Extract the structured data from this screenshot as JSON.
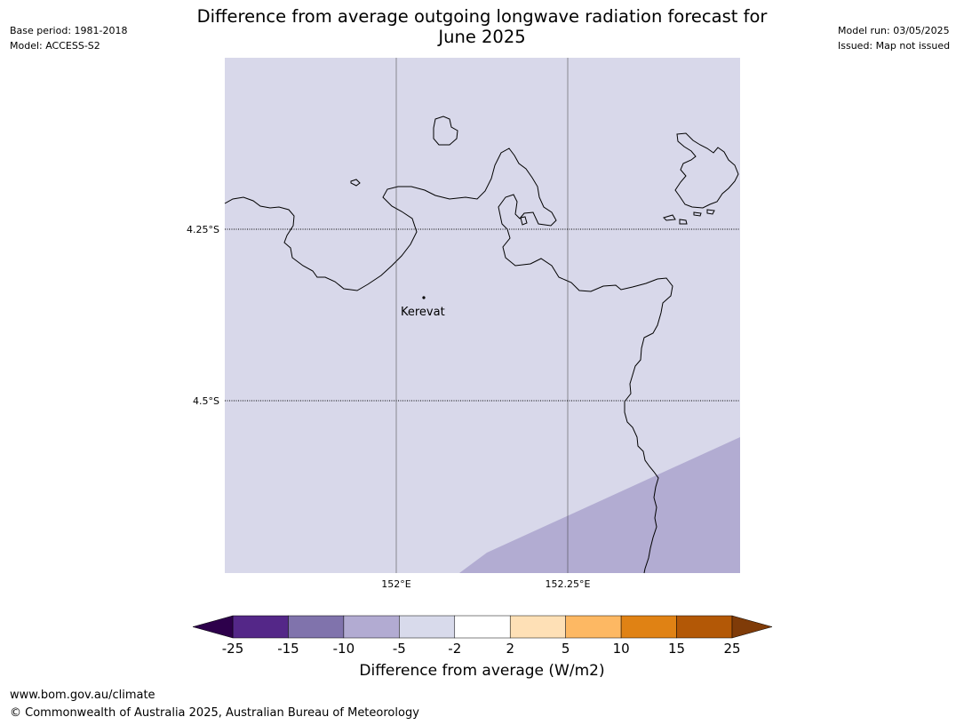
{
  "title_line1": "Difference from average outgoing longwave radiation forecast for",
  "title_line2": "June 2025",
  "meta_left": {
    "base_period": "Base period: 1981-2018",
    "model": "Model: ACCESS-S2"
  },
  "meta_right": {
    "model_run": "Model run: 03/05/2025",
    "issued": "Issued: Map not issued"
  },
  "map": {
    "lat_labels": [
      "4.25°S",
      "4.5°S"
    ],
    "lon_labels": [
      "152°E",
      "152.25°E"
    ],
    "place_label": "Kerevat",
    "background_class_color": "#d8d8ea",
    "anomaly_class_color": "#b2acd2",
    "coastline_color": "#000000"
  },
  "colorbar": {
    "label": "Difference from average (W/m2)",
    "ticks": [
      "-25",
      "-15",
      "-10",
      "-5",
      "-2",
      "2",
      "5",
      "10",
      "15",
      "25"
    ],
    "under_color": "#2d004b",
    "over_color": "#7f3b08",
    "colors": [
      "#542788",
      "#8073ac",
      "#b2abd2",
      "#d8daeb",
      "#ffffff",
      "#fee0b6",
      "#fdb863",
      "#e08214",
      "#b35806"
    ]
  },
  "footer": {
    "url": "www.bom.gov.au/climate",
    "copyright": "© Commonwealth of Australia 2025, Australian Bureau of Meteorology"
  }
}
